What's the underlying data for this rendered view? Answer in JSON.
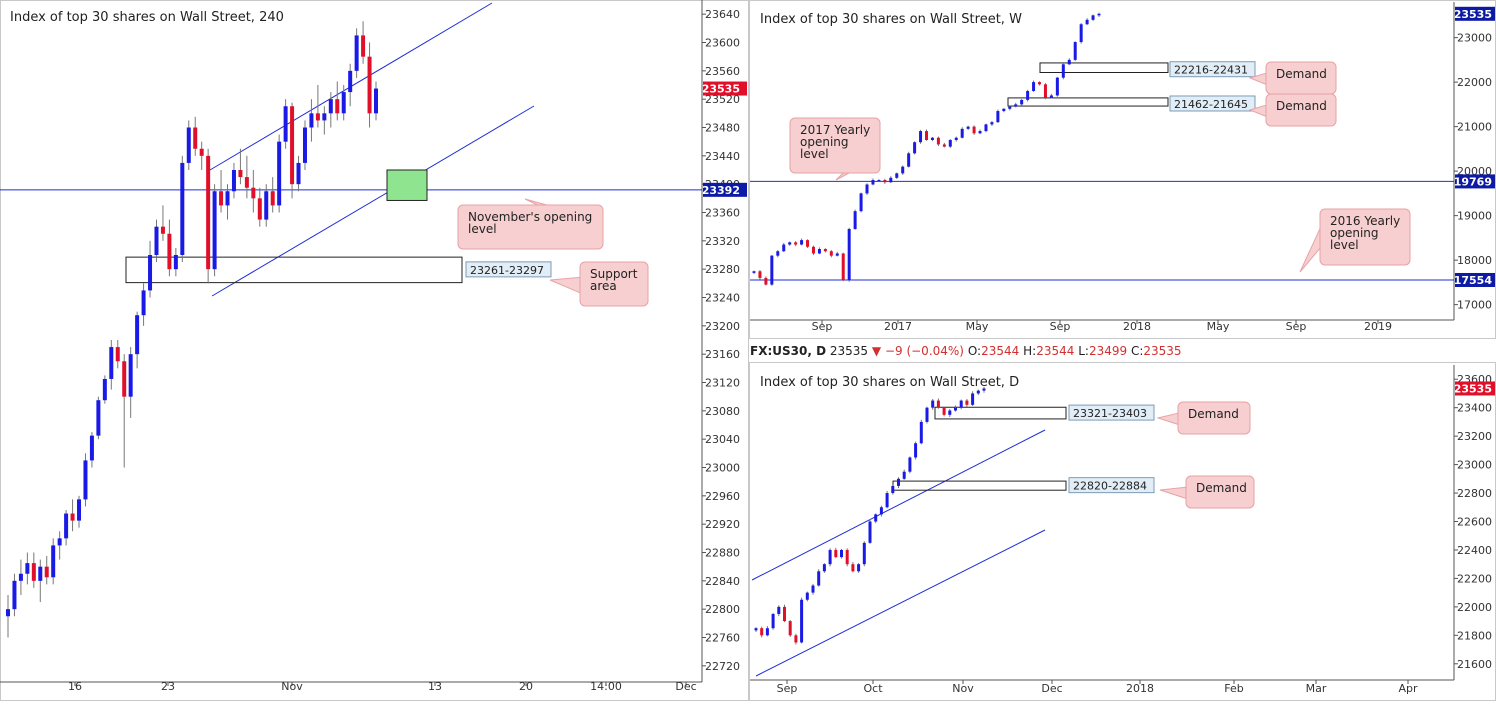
{
  "colors": {
    "up": "#1a1ae6",
    "down": "#e0102a",
    "line": "#1f2fd6",
    "callout_bg": "#f7cfd0",
    "callout_border": "#e7a3a6",
    "price_tag": "#e0102a",
    "level_tag": "#0d1aa6",
    "green_zone": "#8fe58f"
  },
  "panels": [
    {
      "name": "h4",
      "title": "Index of top 30 shares on Wall Street, 240",
      "price_badge": "23535",
      "yticks": [
        "23640",
        "23600",
        "23560",
        "23520",
        "23480",
        "23440",
        "23400",
        "23360",
        "23320",
        "23280",
        "23240",
        "23200",
        "23160",
        "23120",
        "23080",
        "23040",
        "23000",
        "22960",
        "22920",
        "22880",
        "22840",
        "22800",
        "22760",
        "22720"
      ],
      "xticks": [
        "16",
        "23",
        "Nov",
        "13",
        "20",
        "14:00",
        "Dec"
      ],
      "level_tag": "23392",
      "zone_label": "23261-23297",
      "callouts": [
        "November's opening level",
        "Support area"
      ]
    },
    {
      "name": "weekly",
      "title": "Index of top 30 shares on Wall Street, W",
      "price_badge": "23535",
      "yticks": [
        "23000",
        "22000",
        "21000",
        "20000",
        "19000",
        "18000",
        "17000"
      ],
      "xticks": [
        "Sep",
        "2017",
        "May",
        "Sep",
        "2018",
        "May",
        "Sep",
        "2019"
      ],
      "level_tags": [
        "19769",
        "17554"
      ],
      "zone_labels": [
        "22216-22431",
        "21462-21645"
      ],
      "callouts": [
        "Demand",
        "Demand",
        "2017 Yearly opening level",
        "2016 Yearly opening level"
      ]
    },
    {
      "name": "daily",
      "title": "Index of top 30 shares on Wall Street, D",
      "price_badge": "23535",
      "yticks": [
        "23600",
        "23400",
        "23200",
        "23000",
        "22800",
        "22600",
        "22400",
        "22200",
        "22000",
        "21800",
        "21600"
      ],
      "xticks": [
        "Sep",
        "Oct",
        "Nov",
        "Dec",
        "2018",
        "Feb",
        "Mar",
        "Apr"
      ],
      "zone_labels": [
        "23321-23403",
        "22820-22884"
      ],
      "callouts": [
        "Demand",
        "Demand"
      ]
    }
  ],
  "quote_header": {
    "symbol": "FX:US30, D",
    "last": "23535",
    "change": "−9 (−0.04%)",
    "open_label": "O:",
    "open": "23544",
    "high_label": "H:",
    "high": "23544",
    "low_label": "L:",
    "low": "23499",
    "close_label": "C:",
    "close": "23535"
  },
  "chart_data": [
    {
      "type": "candlestick",
      "title": "Index of top 30 shares on Wall Street, 240",
      "timeframe": "240",
      "ylim": [
        22700,
        23660
      ],
      "x_ticks": [
        "16",
        "23",
        "Nov",
        "13",
        "20",
        "14:00",
        "Dec"
      ],
      "last_price": 23535,
      "horizontal_levels": [
        {
          "label": "November's opening level",
          "value": 23392
        }
      ],
      "zones": [
        {
          "label": "Support area",
          "range": [
            23261,
            23297
          ]
        },
        {
          "label": "",
          "range": [
            23377,
            23420
          ],
          "color": "green"
        }
      ],
      "ohlc": [
        [
          22790,
          22820,
          22760,
          22800
        ],
        [
          22800,
          22850,
          22790,
          22840
        ],
        [
          22840,
          22870,
          22820,
          22850
        ],
        [
          22850,
          22880,
          22835,
          22865
        ],
        [
          22865,
          22880,
          22830,
          22840
        ],
        [
          22840,
          22870,
          22810,
          22860
        ],
        [
          22860,
          22875,
          22835,
          22845
        ],
        [
          22845,
          22900,
          22835,
          22890
        ],
        [
          22890,
          22910,
          22870,
          22900
        ],
        [
          22900,
          22940,
          22890,
          22935
        ],
        [
          22935,
          22955,
          22910,
          22925
        ],
        [
          22925,
          22960,
          22915,
          22955
        ],
        [
          22955,
          23020,
          22945,
          23010
        ],
        [
          23010,
          23050,
          23000,
          23045
        ],
        [
          23045,
          23100,
          23040,
          23095
        ],
        [
          23095,
          23130,
          23090,
          23125
        ],
        [
          23125,
          23180,
          23110,
          23170
        ],
        [
          23170,
          23180,
          23140,
          23150
        ],
        [
          23150,
          23160,
          23000,
          23100
        ],
        [
          23100,
          23170,
          23070,
          23160
        ],
        [
          23160,
          23220,
          23140,
          23215
        ],
        [
          23215,
          23260,
          23200,
          23250
        ],
        [
          23250,
          23320,
          23240,
          23300
        ],
        [
          23300,
          23350,
          23290,
          23340
        ],
        [
          23340,
          23370,
          23320,
          23330
        ],
        [
          23330,
          23350,
          23270,
          23280
        ],
        [
          23280,
          23310,
          23270,
          23300
        ],
        [
          23300,
          23440,
          23290,
          23430
        ],
        [
          23430,
          23490,
          23420,
          23480
        ],
        [
          23480,
          23495,
          23440,
          23450
        ],
        [
          23450,
          23460,
          23420,
          23440
        ],
        [
          23440,
          23450,
          23260,
          23280
        ],
        [
          23280,
          23400,
          23270,
          23390
        ],
        [
          23390,
          23420,
          23360,
          23370
        ],
        [
          23370,
          23400,
          23350,
          23390
        ],
        [
          23390,
          23430,
          23380,
          23420
        ],
        [
          23420,
          23450,
          23400,
          23410
        ],
        [
          23410,
          23440,
          23380,
          23395
        ],
        [
          23395,
          23420,
          23360,
          23380
        ],
        [
          23380,
          23395,
          23340,
          23350
        ],
        [
          23350,
          23400,
          23340,
          23390
        ],
        [
          23390,
          23410,
          23360,
          23370
        ],
        [
          23370,
          23470,
          23360,
          23460
        ],
        [
          23460,
          23520,
          23450,
          23510
        ],
        [
          23510,
          23515,
          23380,
          23400
        ],
        [
          23400,
          23440,
          23390,
          23430
        ],
        [
          23430,
          23490,
          23420,
          23480
        ],
        [
          23480,
          23520,
          23460,
          23500
        ],
        [
          23500,
          23540,
          23480,
          23490
        ],
        [
          23490,
          23510,
          23470,
          23500
        ],
        [
          23500,
          23530,
          23480,
          23520
        ],
        [
          23520,
          23545,
          23490,
          23500
        ],
        [
          23500,
          23540,
          23490,
          23530
        ],
        [
          23530,
          23570,
          23510,
          23560
        ],
        [
          23560,
          23620,
          23550,
          23610
        ],
        [
          23610,
          23630,
          23570,
          23580
        ],
        [
          23580,
          23600,
          23480,
          23500
        ],
        [
          23500,
          23545,
          23490,
          23535
        ]
      ]
    },
    {
      "type": "candlestick",
      "title": "Index of top 30 shares on Wall Street, W",
      "timeframe": "W",
      "ylim": [
        16700,
        23800
      ],
      "x_ticks": [
        "Sep",
        "2017",
        "May",
        "Sep",
        "2018",
        "May",
        "Sep",
        "2019"
      ],
      "last_price": 23535,
      "horizontal_levels": [
        {
          "label": "2017 Yearly opening level",
          "value": 19769
        },
        {
          "label": "2016 Yearly opening level",
          "value": 17554
        }
      ],
      "zones": [
        {
          "label": "Demand",
          "range": [
            22216,
            22431
          ]
        },
        {
          "label": "Demand",
          "range": [
            21462,
            21645
          ]
        }
      ],
      "close": [
        17750,
        17600,
        17450,
        18100,
        18200,
        18350,
        18400,
        18350,
        18450,
        18300,
        18150,
        18250,
        18200,
        18100,
        18150,
        17550,
        18700,
        19100,
        19500,
        19700,
        19800,
        19800,
        19750,
        19850,
        19950,
        20100,
        20400,
        20650,
        20900,
        20700,
        20750,
        20600,
        20550,
        20700,
        20750,
        20950,
        21000,
        20850,
        20900,
        21050,
        21100,
        21350,
        21400,
        21450,
        21500,
        21600,
        21800,
        22000,
        21950,
        21650,
        21700,
        22100,
        22400,
        22500,
        22900,
        23300,
        23400,
        23500,
        23535
      ]
    },
    {
      "type": "candlestick",
      "title": "Index of top 30 shares on Wall Street, D",
      "timeframe": "D",
      "ylim": [
        21500,
        23700
      ],
      "x_ticks": [
        "Sep",
        "Oct",
        "Nov",
        "Dec",
        "2018",
        "Feb",
        "Mar",
        "Apr"
      ],
      "last_price": 23535,
      "zones": [
        {
          "label": "Demand",
          "range": [
            23321,
            23403
          ]
        },
        {
          "label": "Demand",
          "range": [
            22820,
            22884
          ]
        }
      ],
      "close": [
        21850,
        21800,
        21850,
        21950,
        22000,
        21900,
        21800,
        21750,
        22050,
        22100,
        22150,
        22250,
        22300,
        22400,
        22350,
        22400,
        22300,
        22250,
        22300,
        22450,
        22600,
        22650,
        22700,
        22800,
        22850,
        22900,
        22950,
        23050,
        23150,
        23300,
        23400,
        23450,
        23400,
        23350,
        23380,
        23400,
        23450,
        23420,
        23500,
        23520,
        23535
      ]
    }
  ]
}
